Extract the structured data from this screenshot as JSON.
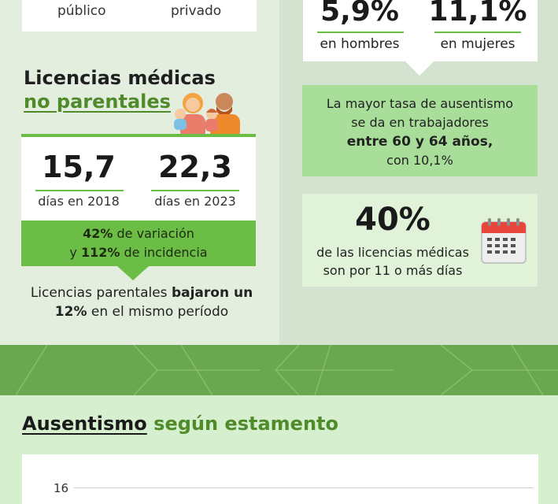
{
  "sector": {
    "public_label": "público",
    "private_label": "privado"
  },
  "medical_leave": {
    "title_line1": "Licencias médicas",
    "title_line2": "no parentales",
    "value_2018": "15,7",
    "label_2018": "días en 2018",
    "value_2023": "22,3",
    "label_2023": "días en 2023",
    "variation_pct": "42%",
    "variation_text": " de variación",
    "incidence_prefix": "y ",
    "incidence_pct": "112%",
    "incidence_text": " de incidencia",
    "parental_prefix": "Licencias parentales ",
    "parental_bold": "bajaron un 12%",
    "parental_suffix": " en el mismo período"
  },
  "gender": {
    "men_value": "5,9%",
    "men_label": "en hombres",
    "women_value": "11,1%",
    "women_label": "en mujeres"
  },
  "age": {
    "line1": "La mayor tasa de ausentismo",
    "line2": "se da en trabajadores",
    "bold": "entre 60 y 64 años,",
    "line4": "con 10,1%"
  },
  "long_leave": {
    "value": "40%",
    "line1": "de las licencias médicas",
    "line2": "son por 11 o más días"
  },
  "estamento": {
    "title_a": "Ausentismo",
    "title_b": " según estamento",
    "chart_data": {
      "type": "bar",
      "title": "Ausentismo según estamento",
      "yticks": [
        16
      ]
    }
  },
  "colors": {
    "accent_green": "#6bbd45",
    "dark_green": "#4f8a2b",
    "light_green_box": "#a9dd9a",
    "band_green": "#6aa84f"
  },
  "icons": [
    "family-illustration",
    "calendar-icon"
  ]
}
